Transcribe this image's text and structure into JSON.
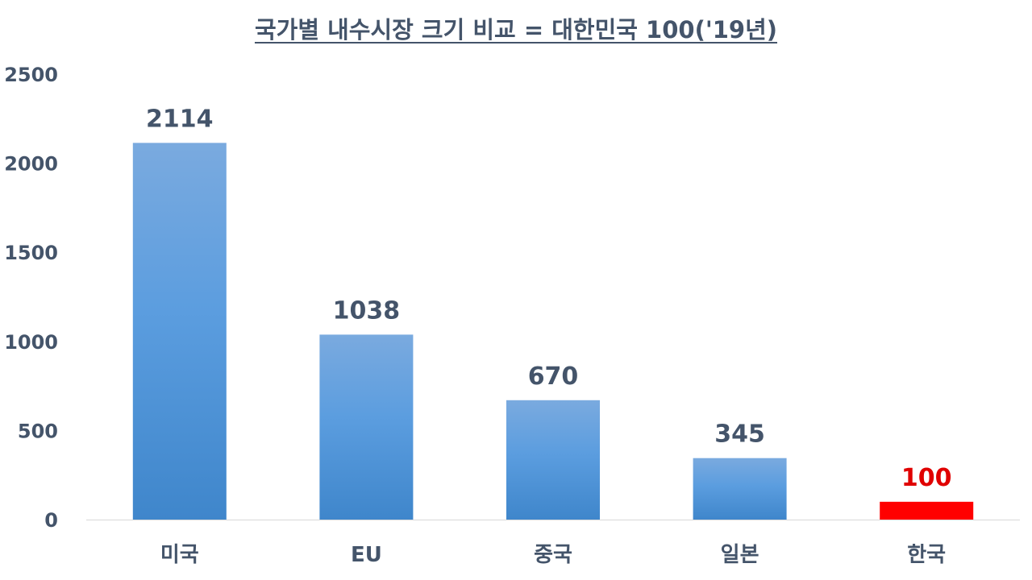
{
  "chart_data": {
    "type": "bar",
    "title": "국가별 내수시장 크기 비교 = 대한민국 100('19년)",
    "xlabel": "",
    "ylabel": "",
    "categories": [
      "미국",
      "EU",
      "중국",
      "일본",
      "한국"
    ],
    "values": [
      2114,
      1038,
      670,
      345,
      100
    ],
    "data_labels": [
      "2114",
      "1038",
      "670",
      "345",
      "100"
    ],
    "ylim": [
      0,
      2500
    ],
    "yticks": [
      0,
      500,
      1000,
      1500,
      2000,
      2500
    ],
    "ytick_labels": [
      "0",
      "500",
      "1000",
      "1500",
      "2000",
      "2500"
    ],
    "grid": false,
    "legend": "none",
    "colors": {
      "bar_top": "#7aaadf",
      "bar_bottom": "#3f86cb",
      "highlight_bar": "#ff0000",
      "highlight_label": "#e00000",
      "text": "#44546a",
      "axis_line": "#d9d9d9"
    },
    "highlight_index": 4
  }
}
